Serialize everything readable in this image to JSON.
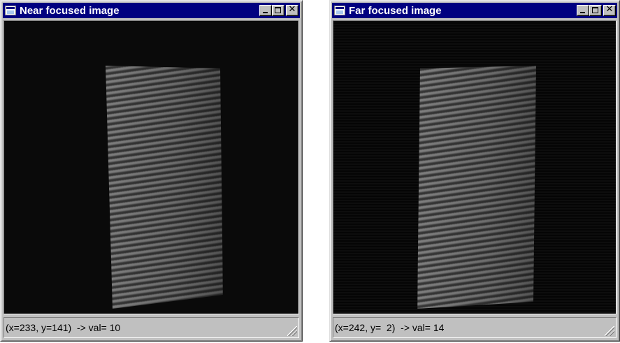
{
  "windows": [
    {
      "title": "Near focused image",
      "status": "(x=233, y=141)  -> val= 10",
      "buttons": [
        "minimize",
        "maximize",
        "close"
      ]
    },
    {
      "title": "Far focused image",
      "status": "(x=242, y=  2)  -> val= 14",
      "buttons": [
        "minimize",
        "maximize",
        "close"
      ]
    }
  ],
  "icons": {
    "window": "window-icon",
    "minimize": "minimize-icon",
    "maximize": "maximize-icon",
    "close": "close-icon",
    "grip": "resize-grip-icon"
  },
  "close_glyph": "✕",
  "colors": {
    "titlebar": "#000080",
    "face": "#c0c0c0",
    "image_background": "#0a0a0a"
  }
}
